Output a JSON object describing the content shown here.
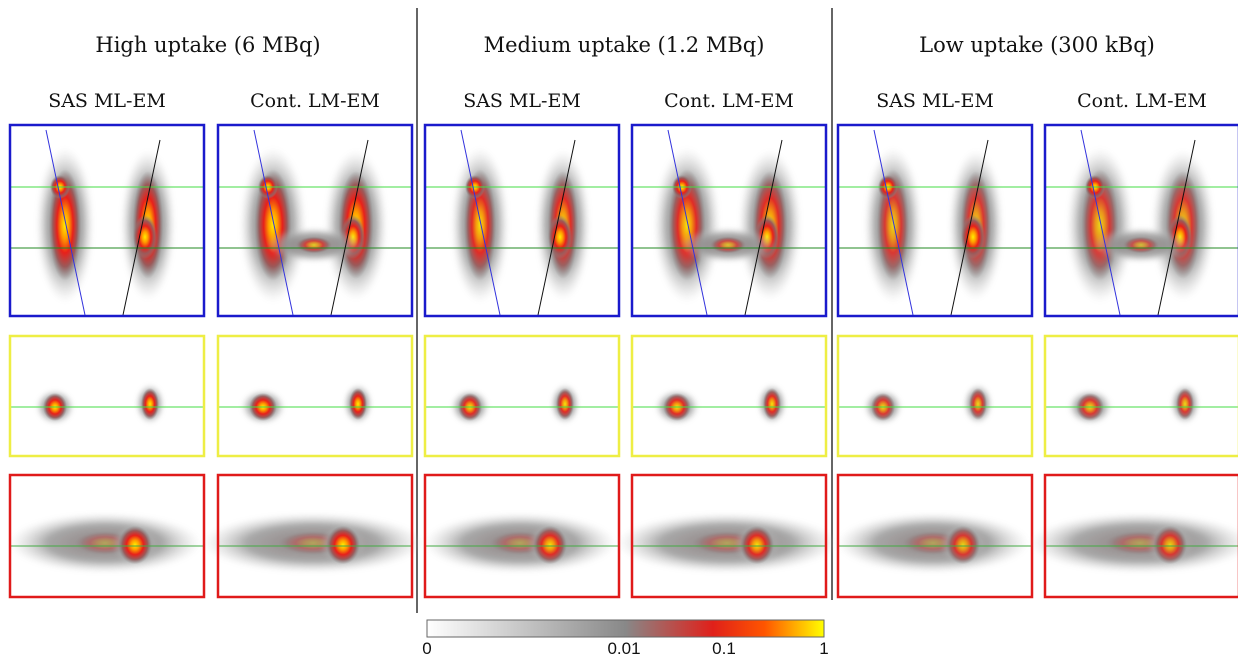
{
  "groups": [
    {
      "title": "High uptake (6 MBq)",
      "columns": [
        "SAS ML-EM",
        "Cont. LM-EM"
      ]
    },
    {
      "title": "Medium uptake (1.2 MBq)",
      "columns": [
        "SAS ML-EM",
        "Cont. LM-EM"
      ]
    },
    {
      "title": "Low uptake (300 kBq)",
      "columns": [
        "SAS ML-EM",
        "Cont. LM-EM"
      ]
    }
  ],
  "colorbar": {
    "labels": [
      "0",
      "0.01",
      "0.1",
      "1"
    ]
  }
}
